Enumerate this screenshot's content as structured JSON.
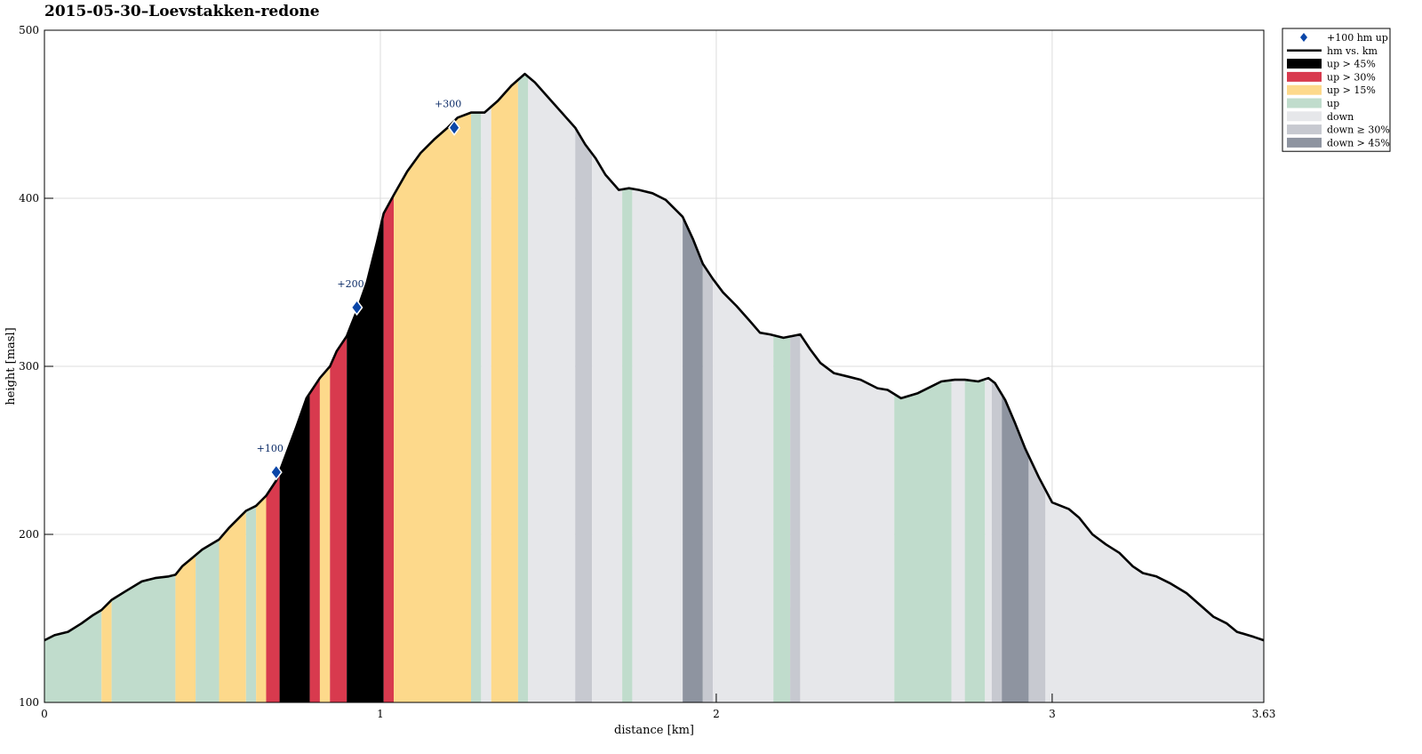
{
  "chart_data": {
    "type": "area",
    "title": "2015-05-30–Loevstakken-redone",
    "xlabel": "distance [km]",
    "ylabel": "height [masl]",
    "xlim": [
      0,
      3.63
    ],
    "ylim": [
      100,
      500
    ],
    "xticks": [
      0,
      1,
      2,
      3,
      3.63
    ],
    "xtick_labels": [
      "0",
      "1",
      "2",
      "3",
      "3.63"
    ],
    "yticks": [
      100,
      200,
      300,
      400,
      500
    ],
    "ytick_labels": [
      "100",
      "200",
      "300",
      "400",
      "500"
    ],
    "grid": true,
    "legend_position": "outside-top-right",
    "colors": {
      "up45": "#000000",
      "up30": "#d83a4e",
      "up15": "#fdd98b",
      "up": "#c0dccc",
      "down": "#e6e7ea",
      "down30": "#c7c9d0",
      "down45": "#8e94a0",
      "line": "#000000",
      "marker": "#0b46a8",
      "annotation": "#0a2a66"
    },
    "legend": [
      {
        "key": "marker",
        "label": "+100 hm up"
      },
      {
        "key": "line",
        "label": "hm vs. km"
      },
      {
        "key": "up45",
        "label": "up > 45%"
      },
      {
        "key": "up30",
        "label": "up > 30%"
      },
      {
        "key": "up15",
        "label": "up > 15%"
      },
      {
        "key": "up",
        "label": "up"
      },
      {
        "key": "down",
        "label": "down"
      },
      {
        "key": "down30",
        "label": "down ≥ 30%"
      },
      {
        "key": "down45",
        "label": "down > 45%"
      }
    ],
    "profile": [
      [
        0,
        137
      ],
      [
        0.03,
        140
      ],
      [
        0.07,
        142
      ],
      [
        0.11,
        147
      ],
      [
        0.145,
        152
      ],
      [
        0.17,
        155
      ],
      [
        0.2,
        161
      ],
      [
        0.24,
        166
      ],
      [
        0.29,
        172
      ],
      [
        0.33,
        174
      ],
      [
        0.37,
        175
      ],
      [
        0.39,
        176
      ],
      [
        0.41,
        181
      ],
      [
        0.44,
        186
      ],
      [
        0.47,
        191
      ],
      [
        0.52,
        197
      ],
      [
        0.55,
        204
      ],
      [
        0.58,
        210
      ],
      [
        0.6,
        214
      ],
      [
        0.63,
        217
      ],
      [
        0.66,
        223
      ],
      [
        0.69,
        232
      ],
      [
        0.72,
        248
      ],
      [
        0.75,
        264
      ],
      [
        0.78,
        281
      ],
      [
        0.82,
        293
      ],
      [
        0.85,
        300
      ],
      [
        0.87,
        309
      ],
      [
        0.9,
        318
      ],
      [
        0.91,
        323
      ],
      [
        0.93,
        333
      ],
      [
        0.96,
        350
      ],
      [
        0.99,
        374
      ],
      [
        1.01,
        391
      ],
      [
        1.04,
        402
      ],
      [
        1.08,
        416
      ],
      [
        1.12,
        427
      ],
      [
        1.16,
        435
      ],
      [
        1.2,
        442
      ],
      [
        1.23,
        448
      ],
      [
        1.27,
        451
      ],
      [
        1.31,
        451
      ],
      [
        1.35,
        458
      ],
      [
        1.39,
        467
      ],
      [
        1.43,
        474
      ],
      [
        1.46,
        469
      ],
      [
        1.5,
        460
      ],
      [
        1.58,
        442
      ],
      [
        1.61,
        432
      ],
      [
        1.64,
        424
      ],
      [
        1.67,
        414
      ],
      [
        1.71,
        405
      ],
      [
        1.74,
        406
      ],
      [
        1.77,
        405
      ],
      [
        1.81,
        403
      ],
      [
        1.85,
        399
      ],
      [
        1.9,
        389
      ],
      [
        1.93,
        376
      ],
      [
        1.96,
        361
      ],
      [
        1.99,
        352
      ],
      [
        2.02,
        344
      ],
      [
        2.06,
        336
      ],
      [
        2.1,
        327
      ],
      [
        2.13,
        320
      ],
      [
        2.16,
        319
      ],
      [
        2.2,
        317
      ],
      [
        2.25,
        319
      ],
      [
        2.28,
        310
      ],
      [
        2.31,
        302
      ],
      [
        2.35,
        296
      ],
      [
        2.39,
        294
      ],
      [
        2.43,
        292
      ],
      [
        2.48,
        287
      ],
      [
        2.51,
        286
      ],
      [
        2.55,
        281
      ],
      [
        2.6,
        284
      ],
      [
        2.64,
        288
      ],
      [
        2.67,
        291
      ],
      [
        2.71,
        292
      ],
      [
        2.74,
        292
      ],
      [
        2.78,
        291
      ],
      [
        2.81,
        293
      ],
      [
        2.83,
        290
      ],
      [
        2.86,
        280
      ],
      [
        2.89,
        266
      ],
      [
        2.92,
        251
      ],
      [
        2.96,
        234
      ],
      [
        3.0,
        219
      ],
      [
        3.05,
        215
      ],
      [
        3.08,
        210
      ],
      [
        3.12,
        200
      ],
      [
        3.16,
        194
      ],
      [
        3.2,
        189
      ],
      [
        3.24,
        181
      ],
      [
        3.27,
        177
      ],
      [
        3.31,
        175
      ],
      [
        3.35,
        171
      ],
      [
        3.4,
        165
      ],
      [
        3.44,
        158
      ],
      [
        3.48,
        151
      ],
      [
        3.52,
        147
      ],
      [
        3.55,
        142
      ],
      [
        3.6,
        139
      ],
      [
        3.63,
        137
      ]
    ],
    "segments": [
      [
        0.0,
        0.17,
        "up"
      ],
      [
        0.17,
        0.2,
        "up15"
      ],
      [
        0.2,
        0.39,
        "up"
      ],
      [
        0.39,
        0.45,
        "up15"
      ],
      [
        0.45,
        0.52,
        "up"
      ],
      [
        0.52,
        0.6,
        "up15"
      ],
      [
        0.6,
        0.63,
        "up"
      ],
      [
        0.63,
        0.66,
        "up15"
      ],
      [
        0.66,
        0.7,
        "up30"
      ],
      [
        0.7,
        0.79,
        "up45"
      ],
      [
        0.79,
        0.82,
        "up30"
      ],
      [
        0.82,
        0.85,
        "up15"
      ],
      [
        0.85,
        0.9,
        "up30"
      ],
      [
        0.9,
        1.01,
        "up45"
      ],
      [
        1.01,
        1.04,
        "up30"
      ],
      [
        1.04,
        1.27,
        "up15"
      ],
      [
        1.27,
        1.3,
        "up"
      ],
      [
        1.3,
        1.33,
        "down"
      ],
      [
        1.33,
        1.41,
        "up15"
      ],
      [
        1.41,
        1.44,
        "up"
      ],
      [
        1.44,
        1.58,
        "down"
      ],
      [
        1.58,
        1.63,
        "down30"
      ],
      [
        1.63,
        1.72,
        "down"
      ],
      [
        1.72,
        1.75,
        "up"
      ],
      [
        1.75,
        1.9,
        "down"
      ],
      [
        1.9,
        1.96,
        "down45"
      ],
      [
        1.96,
        1.99,
        "down30"
      ],
      [
        1.99,
        2.17,
        "down"
      ],
      [
        2.17,
        2.22,
        "up"
      ],
      [
        2.22,
        2.25,
        "down30"
      ],
      [
        2.25,
        2.53,
        "down"
      ],
      [
        2.53,
        2.7,
        "up"
      ],
      [
        2.7,
        2.74,
        "down"
      ],
      [
        2.74,
        2.8,
        "up"
      ],
      [
        2.8,
        2.82,
        "down"
      ],
      [
        2.82,
        2.85,
        "down30"
      ],
      [
        2.85,
        2.93,
        "down45"
      ],
      [
        2.93,
        2.98,
        "down30"
      ],
      [
        2.98,
        3.63,
        "down"
      ]
    ],
    "markers": [
      {
        "x": 0.69,
        "y": 237,
        "label": "+100"
      },
      {
        "x": 0.93,
        "y": 335,
        "label": "+200"
      },
      {
        "x": 1.22,
        "y": 442,
        "label": "+300"
      }
    ]
  }
}
